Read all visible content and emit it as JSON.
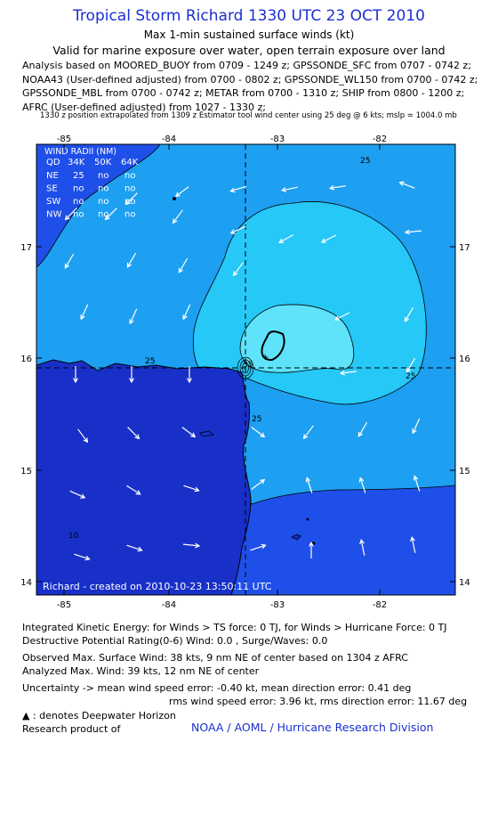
{
  "header": {
    "title": "Tropical Storm Richard 1330 UTC 23 OCT 2010",
    "subtitle1": "Max 1-min sustained surface winds (kt)",
    "subtitle2": "Valid for marine exposure over water, open terrain exposure over land",
    "analysis_lines": [
      "Analysis based on MOORED_BUOY from 0709 - 1249 z; GPSSONDE_SFC from 0707 - 0742 z;",
      "NOAA43 (User-defined adjusted) from 0700 - 0802 z; GPSSONDE_WL150 from 0700 - 0742 z;",
      "GPSSONDE_MBL from 0700 - 0742 z; METAR from 0700 - 1310 z; SHIP from 0800 - 1200 z;",
      "AFRC (User-defined adjusted) from 1027 - 1330 z;"
    ],
    "position_note": "1330 z position extrapolated from 1309 z Estimator tool wind center using 25 deg @ 6 kts; mslp = 1004.0 mb"
  },
  "map": {
    "lon_ticks": [
      "-85",
      "-84",
      "-83",
      "-82"
    ],
    "lat_ticks": [
      "17",
      "16",
      "15",
      "14"
    ],
    "lon_range": [
      -85.25,
      -81.3
    ],
    "lat_range": [
      13.9,
      17.95
    ],
    "center": {
      "lon": -83.25,
      "lat": 15.88
    },
    "contour_labels": [
      "25",
      "25",
      "25",
      "25",
      "35",
      "10"
    ],
    "credit": "Richard - created on 2010-10-23 13:50:11 UTC",
    "colors": {
      "outer": "#1f4fe9",
      "mid": "#1d9ff2",
      "inner": "#25c8f6",
      "core": "#5ee3fa",
      "land": "#1830c8"
    }
  },
  "wind_radii": {
    "title": "WIND RADII (NM)",
    "headers": [
      "QD",
      "34K",
      "50K",
      "64K"
    ],
    "rows": [
      [
        "NE",
        "25",
        "no",
        "no"
      ],
      [
        "SE",
        "no",
        "no",
        "no"
      ],
      [
        "SW",
        "no",
        "no",
        "no"
      ],
      [
        "NW",
        "no",
        "no",
        "no"
      ]
    ]
  },
  "footer": {
    "ike": "Integrated Kinetic Energy:  for Winds > TS force: 0 TJ,  for Winds > Hurricane Force: 0 TJ",
    "dpr": "Destructive Potential Rating(0-6)   Wind: 0.0 , Surge/Waves: 0.0",
    "observed": "Observed Max. Surface Wind: 38 kts, 9 nm NE of center based on 1304 z AFRC",
    "analyzed": "Analyzed Max. Wind: 39 kts, 12 nm NE of center",
    "uncert1": "Uncertainty -> mean wind speed error:  -0.40 kt,   mean direction error: 0.41 deg",
    "uncert2": "rms wind speed error: 3.96 kt,   rms direction error: 11.67 deg",
    "deepwater": ": denotes Deepwater Horizon",
    "research": "Research product of",
    "org": "NOAA / AOML / Hurricane Research Division"
  }
}
